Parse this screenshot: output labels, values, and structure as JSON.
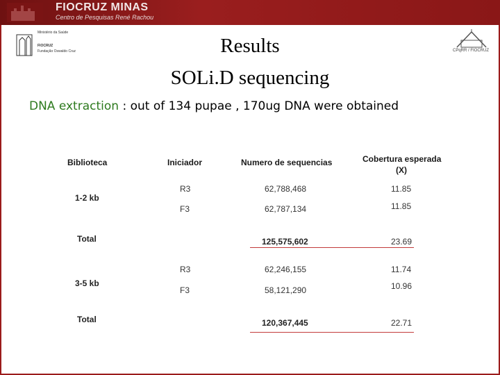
{
  "banner": {
    "title": "FIOCRUZ MINAS",
    "subtitle": "Centro de Pesquisas René Rachou"
  },
  "left_logo": {
    "line1": "Ministério da Saúde",
    "line2": "FIOCRUZ",
    "line3": "Fundação Oswaldo Cruz"
  },
  "right_logo": {
    "text": "CPqRR / FIOCRUZ"
  },
  "title": {
    "line1": "Results",
    "line2": "SOLi.D sequencing"
  },
  "intro": {
    "highlight": "DNA extraction",
    "rest": " : out of 134 pupae , 170ug DNA were obtained"
  },
  "table": {
    "headers": {
      "col1": "Biblioteca",
      "col2": "Iniciador",
      "col3": "Numero de sequencias",
      "col4_line1": "Cobertura esperada",
      "col4_line2": "(X)"
    },
    "group1": {
      "label": "1-2 kb",
      "rows": [
        {
          "primer": "R3",
          "count": "62,788,468",
          "coverage": "11.85"
        },
        {
          "primer": "F3",
          "count": "62,787,134",
          "coverage": "11.85"
        }
      ],
      "total_label": "Total",
      "total_count": "125,575,602",
      "total_coverage": "23.69"
    },
    "group2": {
      "label": "3-5 kb",
      "rows": [
        {
          "primer": "R3",
          "count": "62,246,155",
          "coverage": "11.74"
        },
        {
          "primer": "F3",
          "count": "58,121,290",
          "coverage": "10.96"
        }
      ],
      "total_label": "Total",
      "total_count": "120,367,445",
      "total_coverage": "22.71"
    }
  },
  "colors": {
    "frame": "#9b1b1b",
    "highlight": "#2d7a1e",
    "rule": "#c23a3a"
  }
}
